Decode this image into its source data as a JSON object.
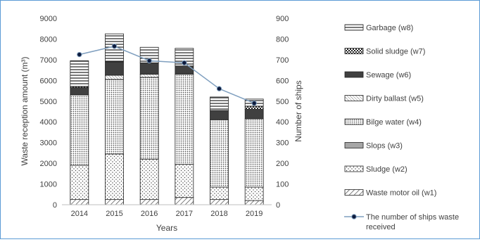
{
  "chart_data": {
    "type": "bar",
    "stacked": true,
    "categories": [
      "2014",
      "2015",
      "2016",
      "2017",
      "2018",
      "2019"
    ],
    "xlabel": "Years",
    "ylabel": "Waste reception amount (m³)",
    "y2label": "Number of ships",
    "ylim": [
      0,
      9000
    ],
    "y2lim": [
      0,
      900
    ],
    "yticks": [
      "0",
      "1000",
      "2000",
      "3000",
      "4000",
      "5000",
      "6000",
      "7000",
      "8000",
      "9000"
    ],
    "y2ticks": [
      "0",
      "100",
      "200",
      "300",
      "400",
      "500",
      "600",
      "700",
      "800",
      "900"
    ],
    "legend_position": "right",
    "series": [
      {
        "name": "Waste motor oil (w1)",
        "key": "w1",
        "values": [
          250,
          250,
          250,
          350,
          250,
          200
        ]
      },
      {
        "name": "Sludge (w2)",
        "key": "w2",
        "values": [
          1650,
          2200,
          1950,
          1600,
          600,
          650
        ]
      },
      {
        "name": "Slops (w3)",
        "key": "w3",
        "values": [
          0,
          0,
          0,
          0,
          0,
          0
        ]
      },
      {
        "name": "Bilge water (w4)",
        "key": "w4",
        "values": [
          3400,
          3600,
          3950,
          4350,
          3250,
          3300
        ]
      },
      {
        "name": "Dirty ballast (w5)",
        "key": "w5",
        "values": [
          0,
          200,
          150,
          0,
          0,
          0
        ]
      },
      {
        "name": "Sewage (w6)",
        "key": "w6",
        "values": [
          350,
          650,
          550,
          400,
          450,
          450
        ]
      },
      {
        "name": "Solid sludge (w7)",
        "key": "w7",
        "values": [
          50,
          0,
          0,
          0,
          0,
          150
        ]
      },
      {
        "name": "Garbage (w8)",
        "key": "w8",
        "values": [
          1250,
          1350,
          750,
          850,
          650,
          350
        ]
      }
    ],
    "line_series": {
      "name": "The number of ships  waste received",
      "axis": "right",
      "values": [
        725,
        765,
        695,
        685,
        560,
        490
      ]
    }
  }
}
